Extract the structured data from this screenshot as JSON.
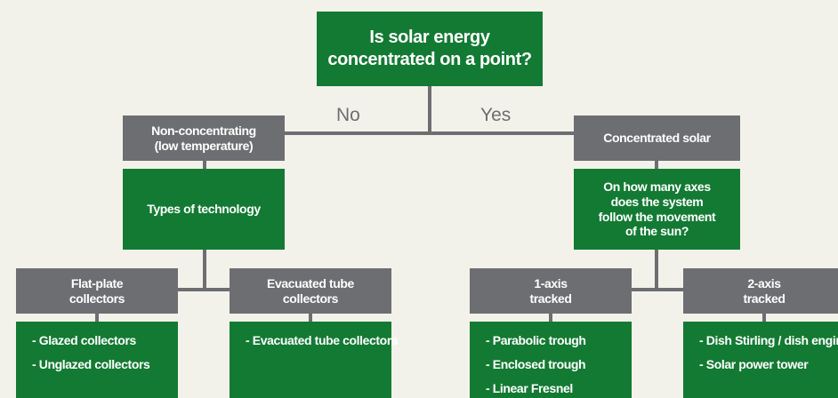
{
  "root": {
    "lines": [
      "Is solar energy",
      "concentrated on a point?"
    ]
  },
  "branches": [
    "No",
    "Yes"
  ],
  "nodes": [
    {
      "lines": [
        "Non-concentrating",
        "(low temperature)"
      ]
    },
    {
      "lines": [
        "Types of technology"
      ]
    },
    {
      "lines": [
        "Concentrated solar"
      ]
    },
    {
      "lines": [
        "On how many axes",
        "does the system",
        "follow the movement",
        "of the sun?"
      ]
    },
    {
      "lines": [
        "Flat-plate",
        "collectors"
      ],
      "items": [
        "- Glazed collectors",
        "- Unglazed collectors"
      ]
    },
    {
      "lines": [
        "Evacuated tube",
        "collectors"
      ],
      "items": [
        "- Evacuated tube collectors"
      ]
    },
    {
      "lines": [
        "1-axis",
        "tracked"
      ],
      "items": [
        "- Parabolic trough",
        "- Enclosed trough",
        "- Linear Fresnel"
      ]
    },
    {
      "lines": [
        "2-axis",
        "tracked"
      ],
      "items": [
        "- Dish Stirling / dish engine",
        "- Solar power tower"
      ]
    }
  ]
}
